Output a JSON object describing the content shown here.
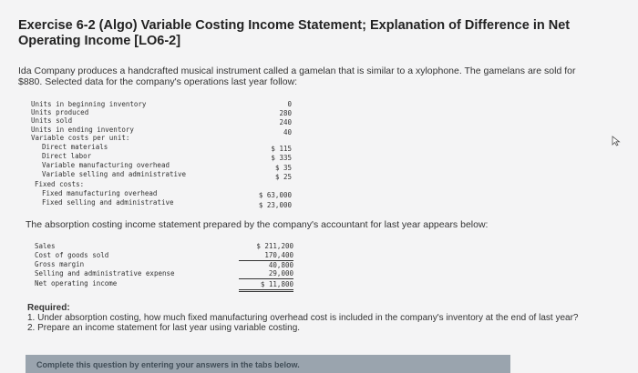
{
  "title": "Exercise 6-2 (Algo) Variable Costing Income Statement; Explanation of Difference in Net Operating Income [LO6-2]",
  "intro": "Ida Company produces a handcrafted musical instrument called a gamelan that is similar to a xylophone. The gamelans are sold for $880. Selected data for the company's operations last year follow:",
  "data_rows": [
    {
      "label": "Units in beginning inventory",
      "value": "0"
    },
    {
      "label": "Units produced",
      "value": "280"
    },
    {
      "label": "Units sold",
      "value": "240"
    },
    {
      "label": "Units in ending inventory",
      "value": "40"
    },
    {
      "label": "Variable costs per unit:",
      "value": ""
    },
    {
      "label": "Direct materials",
      "value": "$ 115"
    },
    {
      "label": "Direct labor",
      "value": "$ 335"
    },
    {
      "label": "Variable manufacturing overhead",
      "value": "$ 35"
    },
    {
      "label": "Variable selling and administrative",
      "value": "$ 25"
    },
    {
      "label": "Fixed costs:",
      "value": ""
    },
    {
      "label": "Fixed manufacturing overhead",
      "value": "$ 63,000"
    },
    {
      "label": "Fixed selling and administrative",
      "value": "$ 23,000"
    }
  ],
  "absorption_intro": "The absorption costing income statement prepared by the company's accountant for last year appears below:",
  "income_rows": [
    {
      "label": "Sales",
      "value": "$ 211,200"
    },
    {
      "label": "Cost of goods sold",
      "value": "170,400"
    },
    {
      "label": "Gross margin",
      "value": "40,800"
    },
    {
      "label": "Selling and administrative expense",
      "value": "29,000"
    },
    {
      "label": "Net operating income",
      "value": "$ 11,800"
    }
  ],
  "required": {
    "heading": "Required:",
    "item1": "1. Under absorption costing, how much fixed manufacturing overhead cost is included in the company's inventory at the end of last year?",
    "item2": "2. Prepare an income statement for last year using variable costing."
  },
  "bottom_banner": "Complete this question by entering your answers in the tabs below."
}
